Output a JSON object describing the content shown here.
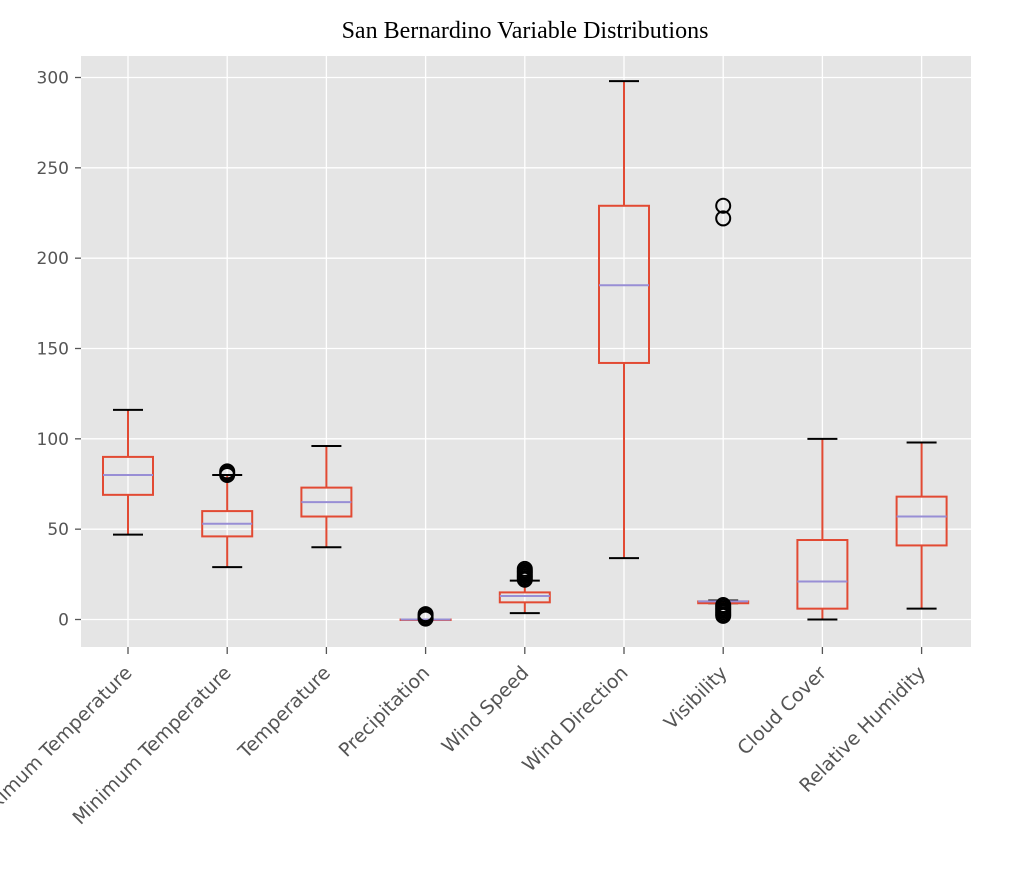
{
  "chart_data": {
    "type": "box",
    "title": "San Bernardino Variable Distributions",
    "xlabel": "",
    "ylabel": "",
    "ylim": [
      -15,
      315
    ],
    "yticks": [
      0,
      50,
      100,
      150,
      200,
      250,
      300
    ],
    "grid": true,
    "colors": {
      "background": "#E5E5E5",
      "grid": "#FFFFFF",
      "box": "#E24A33",
      "median": "#988ED5",
      "whisker_cap": "#000000",
      "flier": "#000000"
    },
    "categories": [
      "Maximum Temperature",
      "Minimum Temperature",
      "Temperature",
      "Precipitation",
      "Wind Speed",
      "Wind Direction",
      "Visibility",
      "Cloud Cover",
      "Relative Humidity"
    ],
    "boxes": [
      {
        "whislo": 47,
        "q1": 69,
        "med": 80,
        "q3": 90,
        "whishi": 116,
        "fliers": []
      },
      {
        "whislo": 29,
        "q1": 46,
        "med": 53,
        "q3": 60,
        "whishi": 80,
        "fliers": [
          80,
          81,
          82
        ]
      },
      {
        "whislo": 40,
        "q1": 57,
        "med": 65,
        "q3": 73,
        "whishi": 96,
        "fliers": []
      },
      {
        "whislo": 0,
        "q1": 0,
        "med": 0,
        "q3": 0,
        "whishi": 0,
        "fliers": [
          0.5,
          1,
          2,
          3
        ]
      },
      {
        "whislo": 3.5,
        "q1": 9.5,
        "med": 13,
        "q3": 15,
        "whishi": 21.5,
        "fliers": [
          22,
          23,
          24,
          25,
          26,
          27,
          28
        ]
      },
      {
        "whislo": 34,
        "q1": 142,
        "med": 185,
        "q3": 229,
        "whishi": 298,
        "fliers": []
      },
      {
        "whislo": 9,
        "q1": 9,
        "med": 10,
        "q3": 10,
        "whishi": 10.5,
        "fliers": [
          2,
          3,
          4,
          5,
          6,
          7,
          8,
          222,
          229
        ]
      },
      {
        "whislo": 0,
        "q1": 6,
        "med": 21,
        "q3": 44,
        "whishi": 100,
        "fliers": []
      },
      {
        "whislo": 6,
        "q1": 41,
        "med": 57,
        "q3": 68,
        "whishi": 98,
        "fliers": []
      }
    ]
  }
}
